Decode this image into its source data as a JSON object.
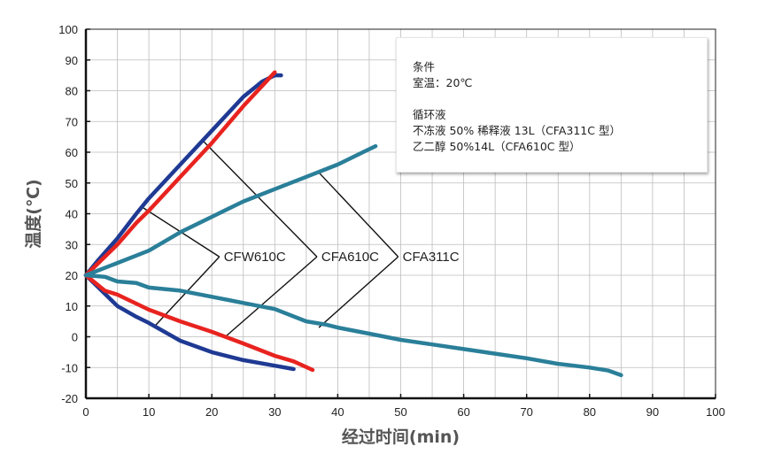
{
  "chart_data": {
    "type": "line",
    "title": "",
    "xlabel": "经过时间(min)",
    "ylabel": "温度(℃)",
    "xlim": [
      0,
      100
    ],
    "ylim": [
      -20,
      100
    ],
    "xticks": [
      "0",
      "10",
      "20",
      "30",
      "40",
      "50",
      "60",
      "70",
      "80",
      "90",
      "100"
    ],
    "yticks": [
      "100",
      "90",
      "80",
      "70",
      "60",
      "50",
      "40",
      "30",
      "20",
      "10",
      "0",
      "-10",
      "-20"
    ],
    "grid": true,
    "series": [
      {
        "name": "CFW610C heating",
        "color": "#1f3a93",
        "x": [
          0,
          2,
          5,
          8,
          10,
          15,
          20,
          25,
          28,
          30,
          31
        ],
        "y": [
          20,
          25,
          32,
          40,
          45,
          56,
          67,
          78,
          83,
          85,
          85
        ]
      },
      {
        "name": "CFA610C heating",
        "color": "#e8231f",
        "x": [
          0,
          2,
          5,
          8,
          10,
          15,
          20,
          25,
          30
        ],
        "y": [
          20,
          24,
          30,
          37,
          41,
          52,
          63,
          75,
          86
        ]
      },
      {
        "name": "CFA311C heating",
        "color": "#2a7f99",
        "x": [
          0,
          5,
          10,
          15,
          20,
          25,
          30,
          35,
          40,
          44,
          46
        ],
        "y": [
          20,
          24,
          28,
          34,
          39,
          44,
          48,
          52,
          56,
          60,
          62
        ]
      },
      {
        "name": "CFW610C cooling",
        "color": "#1f3a93",
        "x": [
          0,
          2,
          5,
          8,
          10,
          15,
          20,
          25,
          30,
          33
        ],
        "y": [
          20,
          16,
          10,
          6.5,
          4.5,
          -1.3,
          -5,
          -7.6,
          -9.4,
          -10.5
        ]
      },
      {
        "name": "CFA610C cooling",
        "color": "#e8231f",
        "x": [
          0,
          3,
          5,
          10,
          15,
          20,
          25,
          30,
          33,
          36
        ],
        "y": [
          20,
          15,
          13.7,
          8.8,
          5,
          1.6,
          -2.2,
          -6.2,
          -8,
          -10.8
        ]
      },
      {
        "name": "CFA311C cooling",
        "color": "#2a7f99",
        "x": [
          0,
          3,
          5,
          8,
          10,
          15,
          20,
          25,
          30,
          35,
          38,
          40,
          45,
          50,
          55,
          60,
          65,
          70,
          75,
          80,
          83,
          85
        ],
        "y": [
          20,
          19.5,
          18,
          17.5,
          16,
          15,
          13,
          11,
          9,
          5,
          4,
          3,
          1,
          -1,
          -2.5,
          -4,
          -5.5,
          -7,
          -8.8,
          -10,
          -11,
          -12.5
        ]
      }
    ],
    "annotations": [
      {
        "label": "CFW610C",
        "vertex": [
          21.2,
          26
        ],
        "targets": [
          [
            8.9,
            42.2
          ],
          [
            11,
            3.6
          ]
        ]
      },
      {
        "label": "CFA610C",
        "vertex": [
          36.7,
          26
        ],
        "targets": [
          [
            18.7,
            63.5
          ],
          [
            22.2,
            0.1
          ]
        ]
      },
      {
        "label": "CFA311C",
        "vertex": [
          49.6,
          26
        ],
        "targets": [
          [
            37,
            53.4
          ],
          [
            37,
            3
          ]
        ]
      }
    ]
  },
  "note": {
    "lines": [
      "条件",
      "室温：20℃",
      "",
      "循环液",
      "不冻液 50% 稀释液 13L（CFA311C 型）",
      "乙二醇 50%14L（CFA610C 型）"
    ]
  }
}
